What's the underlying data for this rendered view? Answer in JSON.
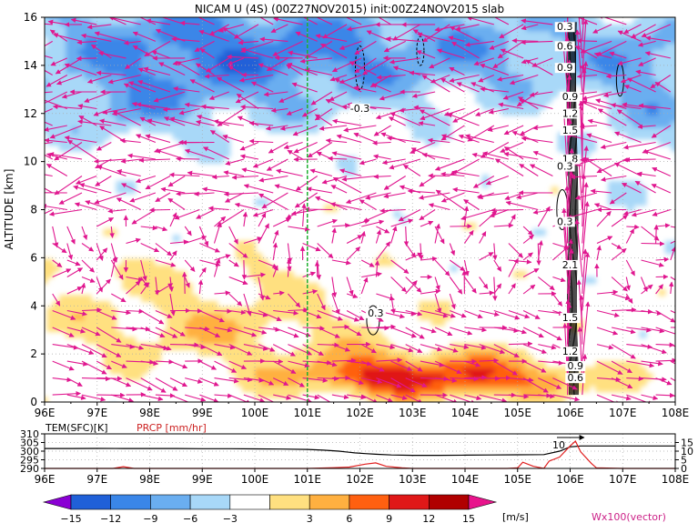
{
  "title": "NICAM U (4S) (00Z27NOV2015) init:00Z24NOV2015 slab",
  "chart_data": [
    {
      "type": "heatmap",
      "name": "cross-section",
      "xlabel": "",
      "ylabel": "ALTITUDE [km]",
      "xlim": [
        96,
        108
      ],
      "ylim": [
        0,
        16
      ],
      "x_ticks": [
        "96E",
        "97E",
        "98E",
        "99E",
        "100E",
        "101E",
        "102E",
        "103E",
        "104E",
        "105E",
        "106E",
        "107E",
        "108E"
      ],
      "y_ticks": [
        "0",
        "2",
        "4",
        "6",
        "8",
        "10",
        "12",
        "14",
        "16"
      ],
      "reference_line_lon": 101,
      "color_levels": [
        -15,
        -12,
        -9,
        -6,
        -3,
        3,
        6,
        9,
        12,
        15
      ],
      "color_palette": [
        "#8a00d4",
        "#2060d8",
        "#3a86e8",
        "#6aaef0",
        "#a8d8f8",
        "#ffffff",
        "#ffe080",
        "#ffb040",
        "#ff6010",
        "#e01818",
        "#b00000",
        "#e8148c"
      ],
      "contour_labels": [
        {
          "text": "-0.3",
          "lon": 102.0,
          "alt": 12.1
        },
        {
          "text": "0.3",
          "lon": 102.3,
          "alt": 3.6
        },
        {
          "text": "0.3",
          "lon": 105.9,
          "alt": 15.5
        },
        {
          "text": "0.6",
          "lon": 105.9,
          "alt": 14.7
        },
        {
          "text": "0.9",
          "lon": 105.9,
          "alt": 13.8
        },
        {
          "text": "0.9",
          "lon": 106.0,
          "alt": 12.6
        },
        {
          "text": "1.2",
          "lon": 106.0,
          "alt": 11.9
        },
        {
          "text": "1.5",
          "lon": 106.0,
          "alt": 11.2
        },
        {
          "text": "1.8",
          "lon": 106.0,
          "alt": 10.0
        },
        {
          "text": "0.3",
          "lon": 105.9,
          "alt": 9.7
        },
        {
          "text": "0.3",
          "lon": 105.9,
          "alt": 7.4
        },
        {
          "text": "2.1",
          "lon": 106.0,
          "alt": 5.6
        },
        {
          "text": "1.5",
          "lon": 106.0,
          "alt": 3.4
        },
        {
          "text": "1.2",
          "lon": 106.0,
          "alt": 2.0
        },
        {
          "text": "0.9",
          "lon": 106.1,
          "alt": 1.4
        },
        {
          "text": "0.6",
          "lon": 106.1,
          "alt": 0.9
        }
      ],
      "vector_legend": "Wx100(vector)"
    },
    {
      "type": "line",
      "name": "surface",
      "xlim": [
        96,
        108
      ],
      "x_ticks": [
        "96E",
        "97E",
        "98E",
        "99E",
        "100E",
        "101E",
        "102E",
        "103E",
        "104E",
        "105E",
        "106E",
        "107E",
        "108E"
      ],
      "series": [
        {
          "name": "TEM(SFC)[K]",
          "color": "#000000",
          "x": [
            96,
            96.5,
            97,
            97.5,
            98,
            98.5,
            99,
            99.5,
            100,
            100.5,
            101,
            101.3,
            101.6,
            101.9,
            102.1,
            102.3,
            102.6,
            103,
            103.5,
            104,
            104.5,
            105,
            105.5,
            105.8,
            106,
            106.2,
            106.5,
            107,
            107.5,
            108
          ],
          "y": [
            301.5,
            301.5,
            301.6,
            301.5,
            301.5,
            301.5,
            301.4,
            301.4,
            301.3,
            301.2,
            301.0,
            300.6,
            300.0,
            299.0,
            298.6,
            298.2,
            297.8,
            297.6,
            297.6,
            297.7,
            297.8,
            297.9,
            298.0,
            300.0,
            302.5,
            303.0,
            303.0,
            303.0,
            303.0,
            303.0
          ]
        },
        {
          "name": "PRCP [mm/hr]",
          "color": "#cc2222",
          "x": [
            96,
            97.3,
            97.5,
            97.7,
            98,
            101,
            101.5,
            101.8,
            102.1,
            102.3,
            102.5,
            102.8,
            103,
            104,
            104.8,
            105,
            105.1,
            105.3,
            105.5,
            105.6,
            105.8,
            106,
            106.1,
            106.2,
            106.4,
            106.5,
            107,
            108
          ],
          "y": [
            0,
            0,
            1.0,
            0,
            0,
            0,
            0.4,
            0.8,
            2.5,
            3.2,
            1.2,
            0.3,
            0,
            0,
            0,
            0.3,
            3.6,
            1.2,
            0,
            4.2,
            6.6,
            13.0,
            15.8,
            9.6,
            3.0,
            0.3,
            0,
            0
          ]
        }
      ],
      "y_ticks_left": [
        "290",
        "295",
        "300",
        "305",
        "310"
      ],
      "y_ticks_right": [
        "0",
        "5",
        "10",
        "15"
      ],
      "annotation": "10"
    }
  ],
  "colorbar": {
    "ticks": [
      "−15",
      "−12",
      "−9",
      "−6",
      "−3",
      "3",
      "6",
      "9",
      "12",
      "15"
    ],
    "unit": "[m/s]"
  }
}
